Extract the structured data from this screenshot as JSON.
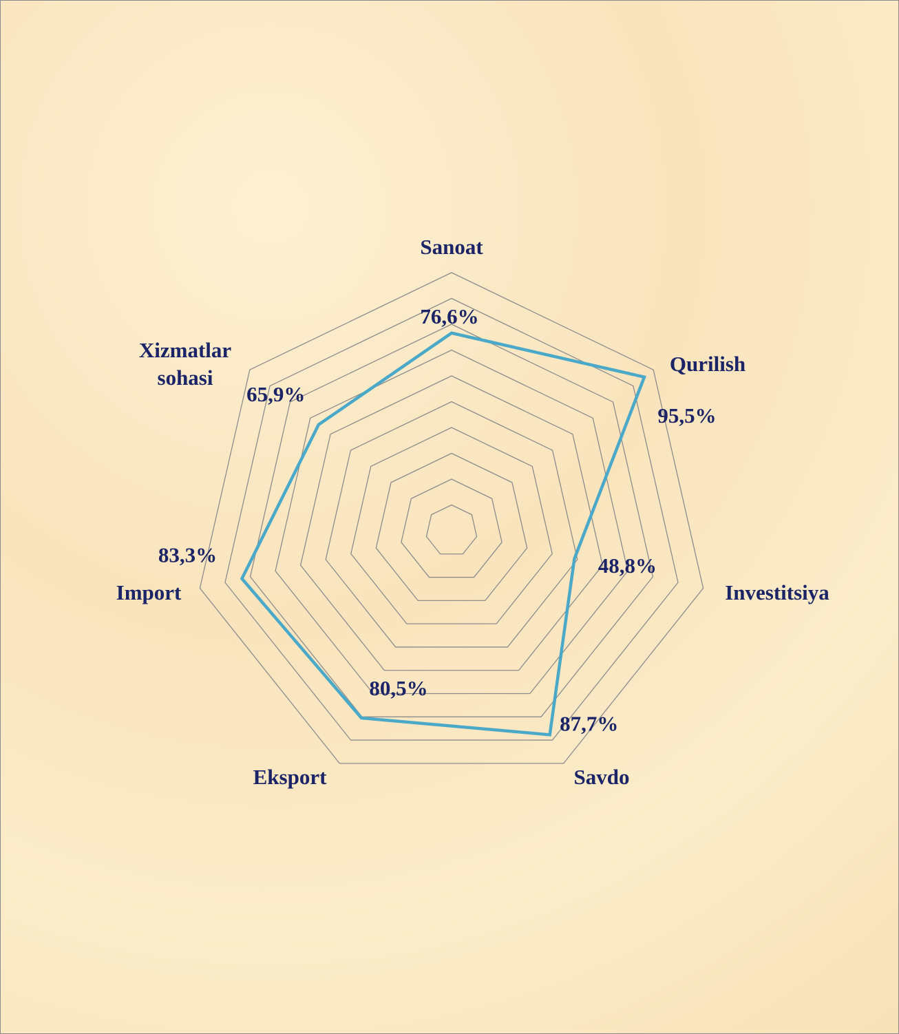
{
  "chart_data": {
    "type": "radar",
    "categories": [
      "Sanoat",
      "Qurilish",
      "Investitsiya",
      "Savdo",
      "Eksport",
      "Import",
      "Xizmatlar\nsohasi"
    ],
    "values": [
      76.6,
      95.5,
      48.8,
      87.7,
      80.5,
      83.3,
      65.9
    ],
    "value_labels": [
      "76,6%",
      "95,5%",
      "48,8%",
      "87,7%",
      "80,5%",
      "83,3%",
      "65,9%"
    ],
    "color": "#4aa8c8",
    "ylim": [
      0,
      100
    ],
    "yticks": [
      0,
      10,
      20,
      30,
      40,
      50,
      60,
      70,
      80,
      90,
      100
    ],
    "grid": true
  }
}
